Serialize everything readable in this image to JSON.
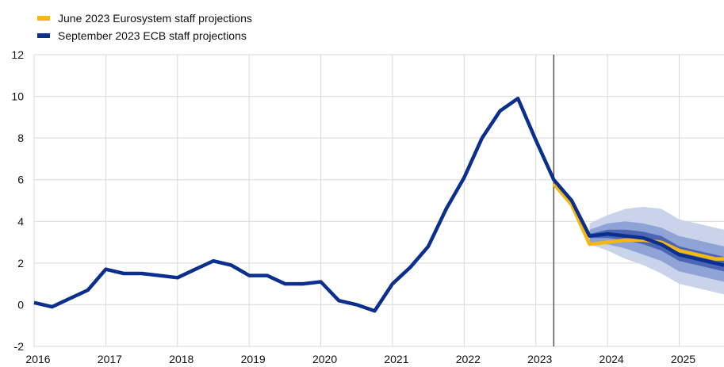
{
  "colors": {
    "june": "#F5B80F",
    "september": "#0A2F8F",
    "band_outer": "#C9D3EA",
    "band_mid": "#8FA3D6",
    "band_inner": "#4C66B3",
    "grid": "#D9D9D9",
    "vline": "#555555"
  },
  "chart_data": {
    "type": "line",
    "xlim": [
      2016.0,
      2025.625
    ],
    "ylim": [
      -2,
      12
    ],
    "yticks": [
      -2,
      0,
      2,
      4,
      6,
      8,
      10,
      12
    ],
    "xticks": [
      "2016",
      "2017",
      "2018",
      "2019",
      "2020",
      "2021",
      "2022",
      "2023",
      "2024",
      "2025"
    ],
    "vline_x": 2023.25,
    "grid": "vertical and horizontal",
    "legend_position": "top-left",
    "series": [
      {
        "name": "June 2023 Eurosystem staff projections",
        "color_key": "june",
        "x": [
          2023.25,
          2023.5,
          2023.75,
          2024.0,
          2024.25,
          2024.5,
          2024.75,
          2025.0,
          2025.25,
          2025.5,
          2025.625
        ],
        "values": [
          5.8,
          4.8,
          2.9,
          3.0,
          3.1,
          3.1,
          3.0,
          2.6,
          2.4,
          2.2,
          2.2
        ]
      },
      {
        "name": "September 2023 ECB staff projections",
        "color_key": "september",
        "x": [
          2016.0,
          2016.25,
          2016.5,
          2016.75,
          2017.0,
          2017.25,
          2017.5,
          2017.75,
          2018.0,
          2018.25,
          2018.5,
          2018.75,
          2019.0,
          2019.25,
          2019.5,
          2019.75,
          2020.0,
          2020.25,
          2020.5,
          2020.75,
          2021.0,
          2021.25,
          2021.5,
          2021.75,
          2022.0,
          2022.25,
          2022.5,
          2022.75,
          2023.0,
          2023.25,
          2023.5,
          2023.75,
          2024.0,
          2024.25,
          2024.5,
          2024.75,
          2025.0,
          2025.25,
          2025.5,
          2025.625
        ],
        "values": [
          0.1,
          -0.1,
          0.3,
          0.7,
          1.7,
          1.5,
          1.5,
          1.4,
          1.3,
          1.7,
          2.1,
          1.9,
          1.4,
          1.4,
          1.0,
          1.0,
          1.1,
          0.2,
          0.0,
          -0.3,
          1.0,
          1.8,
          2.8,
          4.6,
          6.1,
          8.0,
          9.3,
          9.9,
          7.9,
          6.0,
          5.0,
          3.3,
          3.4,
          3.3,
          3.2,
          2.9,
          2.4,
          2.2,
          2.0,
          1.9
        ]
      }
    ],
    "uncertainty_bands": {
      "x": [
        2023.75,
        2024.0,
        2024.25,
        2024.5,
        2024.75,
        2025.0,
        2025.25,
        2025.5,
        2025.625
      ],
      "outer": {
        "upper": [
          3.9,
          4.3,
          4.6,
          4.7,
          4.6,
          4.1,
          3.9,
          3.7,
          3.6
        ],
        "lower": [
          2.9,
          2.6,
          2.2,
          1.9,
          1.5,
          1.0,
          0.8,
          0.6,
          0.5
        ]
      },
      "mid": {
        "upper": [
          3.6,
          3.9,
          4.0,
          3.9,
          3.7,
          3.3,
          3.1,
          2.9,
          2.8
        ],
        "lower": [
          3.0,
          2.9,
          2.7,
          2.4,
          2.1,
          1.6,
          1.4,
          1.2,
          1.1
        ]
      },
      "inner": {
        "upper": [
          3.4,
          3.6,
          3.6,
          3.5,
          3.3,
          2.8,
          2.6,
          2.4,
          2.3
        ],
        "lower": [
          3.2,
          3.2,
          3.1,
          2.9,
          2.6,
          2.1,
          1.9,
          1.7,
          1.6
        ]
      }
    }
  }
}
